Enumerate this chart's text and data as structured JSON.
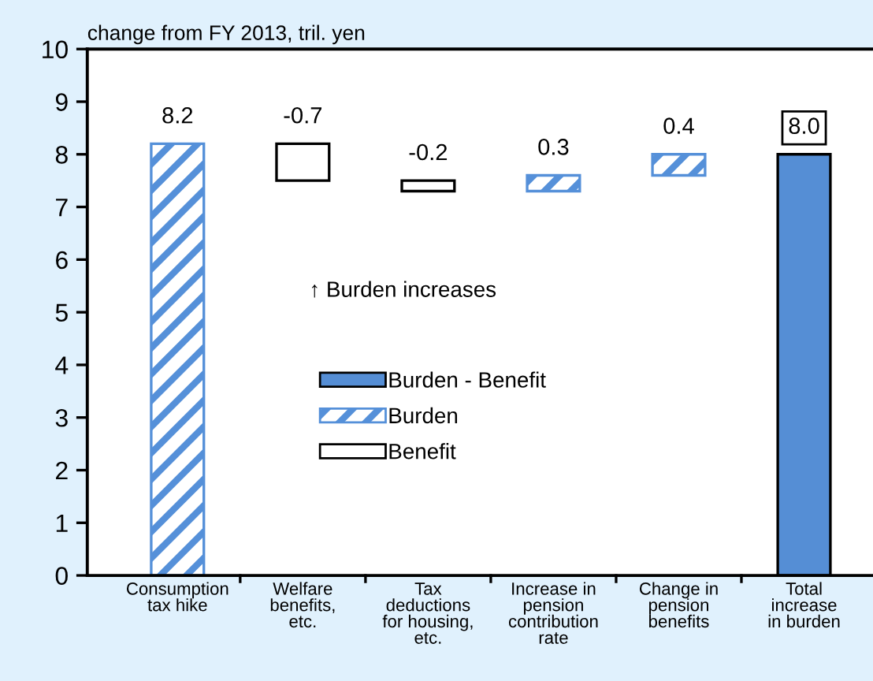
{
  "chart_data": {
    "type": "bar",
    "subtitle": "change from FY 2013, tril. yen",
    "categories": [
      "Consumption\ntax hike",
      "Welfare\nbenefits,\netc.",
      "Tax\ndeductions\nfor housing,\netc.",
      "Increase in\npension\ncontribution\nrate",
      "Change in\npension\nbenefits",
      "Total\nincrease\nin burden"
    ],
    "series": [
      {
        "name": "Burden - Benefit",
        "color": "#558ed5",
        "values": [
          null,
          null,
          null,
          null,
          null,
          8.0
        ],
        "base": [
          null,
          null,
          null,
          null,
          null,
          0
        ],
        "value_labels": [
          null,
          null,
          null,
          null,
          null,
          "8.0"
        ]
      },
      {
        "name": "Burden",
        "color": "#5590d9",
        "values": [
          8.2,
          null,
          null,
          0.3,
          0.4,
          null
        ],
        "base": [
          0,
          null,
          null,
          7.3,
          7.6,
          null
        ],
        "value_labels": [
          "8.2",
          null,
          null,
          "0.3",
          "0.4",
          null
        ]
      },
      {
        "name": "Benefit",
        "color": "#ffffff",
        "values": [
          null,
          -0.7,
          -0.2,
          null,
          null,
          null
        ],
        "base": [
          null,
          8.2,
          7.5,
          null,
          null,
          null
        ],
        "value_labels": [
          null,
          "-0.7",
          "-0.2",
          null,
          null,
          null
        ]
      }
    ],
    "ylim": [
      0,
      10
    ],
    "yticks": [
      0,
      1,
      2,
      3,
      4,
      5,
      6,
      7,
      8,
      9,
      10
    ],
    "legend": "center",
    "grid": false,
    "annotations": [
      "↑ Burden increases"
    ]
  }
}
